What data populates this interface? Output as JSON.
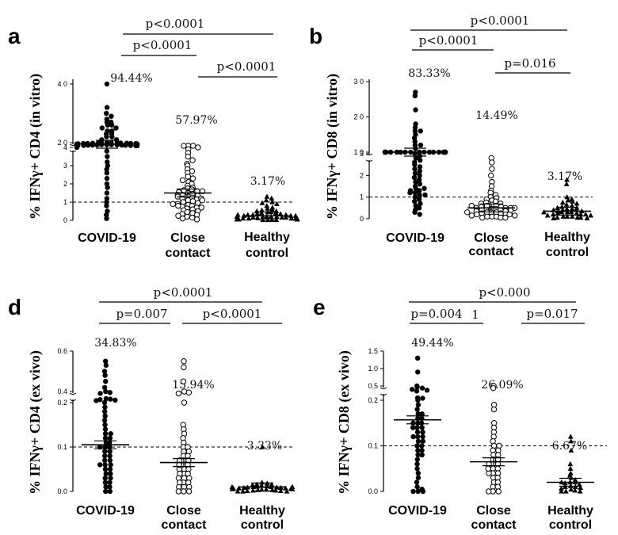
{
  "chart_data": [
    {
      "panel": "a",
      "type": "scatter",
      "ylabel": "% IFNγ+ CD4 (in vitro)",
      "categories": [
        "COVID-19",
        "Close contact",
        "Healthy control"
      ],
      "category_lines": [
        [
          "COVID-19"
        ],
        [
          "Close",
          "contact"
        ],
        [
          "Healthy",
          "control"
        ]
      ],
      "percentages": [
        "94.44%",
        "57.97%",
        "3.17%"
      ],
      "pvalues": [
        "p<0.0001",
        "p<0.0001",
        "p<0.0001"
      ],
      "yaxis": {
        "type": "broken",
        "lower_ticks": [
          0,
          1,
          2,
          3,
          4
        ],
        "upper_ticks": [
          20,
          40
        ],
        "ticks_text": [
          "0",
          "1",
          "2",
          "3",
          "4",
          "2 0",
          "4 0"
        ]
      },
      "threshold": 1,
      "series": [
        {
          "marker": "filled-circle",
          "mean": 12,
          "values": [
            40,
            32,
            30,
            29,
            28,
            27,
            27,
            26,
            26,
            25,
            25,
            24,
            24,
            23,
            23,
            22,
            22,
            21,
            21,
            20,
            20,
            19,
            19,
            18,
            18,
            17,
            17,
            16,
            16,
            15,
            15,
            14,
            14,
            13,
            13,
            12,
            12,
            12,
            11,
            11,
            10,
            10,
            10,
            9,
            9,
            8,
            8,
            7,
            7,
            6,
            6,
            5,
            5,
            4.8,
            4.5,
            4.2,
            4.0,
            3.8,
            3.5,
            3.2,
            3.0,
            2.8,
            2.6,
            2.3,
            2.0,
            1.8,
            1.5,
            1.2,
            1.0,
            0.8,
            0.5,
            0.3,
            0.1
          ]
        },
        {
          "marker": "open-circle",
          "mean": 1.5,
          "values": [
            4.6,
            4.4,
            4.2,
            4.0,
            3.9,
            3.7,
            3.5,
            3.3,
            3.1,
            3.0,
            2.8,
            2.7,
            2.6,
            2.4,
            2.3,
            2.2,
            2.1,
            2.0,
            1.9,
            1.8,
            1.75,
            1.7,
            1.65,
            1.6,
            1.55,
            1.5,
            1.45,
            1.4,
            1.35,
            1.3,
            1.25,
            1.2,
            1.15,
            1.1,
            1.05,
            1.0,
            0.95,
            0.9,
            0.85,
            0.8,
            0.75,
            0.7,
            0.65,
            0.6,
            0.55,
            0.5,
            0.45,
            0.4,
            0.35,
            0.3,
            0.25,
            0.2,
            0.15,
            0.1,
            0.05,
            1.6,
            1.4,
            1.3,
            1.2,
            1.1,
            0.9,
            0.8,
            0.7
          ]
        },
        {
          "marker": "filled-triangle",
          "mean": 0.25,
          "values": [
            1.3,
            1.2,
            1.1,
            1.0,
            0.95,
            0.9,
            0.8,
            0.7,
            0.65,
            0.6,
            0.55,
            0.5,
            0.5,
            0.45,
            0.45,
            0.4,
            0.4,
            0.35,
            0.35,
            0.3,
            0.3,
            0.3,
            0.25,
            0.25,
            0.25,
            0.2,
            0.2,
            0.2,
            0.2,
            0.15,
            0.15,
            0.15,
            0.15,
            0.1,
            0.1,
            0.1,
            0.1,
            0.05,
            0.05,
            0.05,
            0.05,
            0.02,
            0.02,
            0.02,
            0.02,
            0.3,
            0.2,
            0.1
          ]
        }
      ]
    },
    {
      "panel": "b",
      "type": "scatter",
      "ylabel": "% IFNγ+ CD8 (in vitro)",
      "categories": [
        "COVID-19",
        "Close contact",
        "Healthy control"
      ],
      "category_lines": [
        [
          "COVID-19"
        ],
        [
          "Close",
          "contact"
        ],
        [
          "Healthy",
          "control"
        ]
      ],
      "percentages": [
        "83.33%",
        "14.49%",
        "3.17%"
      ],
      "pvalues": [
        "p<0.0001",
        "p<0.0001",
        "p=0.016"
      ],
      "yaxis": {
        "type": "broken",
        "lower_ticks": [
          0,
          1,
          2,
          3
        ],
        "upper_ticks": [
          10,
          20,
          30
        ],
        "ticks_text": [
          "0",
          "1",
          "2",
          "3",
          "1 0",
          "2 0",
          "3 0"
        ]
      },
      "threshold": 1,
      "series": [
        {
          "marker": "filled-circle",
          "mean": 4,
          "values": [
            27,
            26,
            22,
            18,
            17,
            16,
            16,
            15,
            14,
            13,
            12,
            12,
            11,
            10,
            10,
            9,
            9,
            8,
            8,
            7,
            7,
            6,
            6,
            5,
            5,
            5,
            4.5,
            4.5,
            4.5,
            4,
            4,
            4,
            3.5,
            3.2,
            3.0,
            2.9,
            2.8,
            2.7,
            2.6,
            2.5,
            2.4,
            2.3,
            2.2,
            2.1,
            2.0,
            1.9,
            1.8,
            1.7,
            1.6,
            1.5,
            1.4,
            1.3,
            1.2,
            1.1,
            1.0,
            0.9,
            0.8,
            0.7,
            0.6,
            0.5,
            0.4,
            0.3,
            0.2,
            1.2,
            1.1,
            1.3,
            1.4
          ]
        },
        {
          "marker": "open-circle",
          "mean": 0.5,
          "values": [
            2.8,
            2.6,
            2.3,
            2.0,
            1.7,
            1.5,
            1.3,
            1.2,
            1.1,
            1.0,
            0.95,
            0.9,
            0.85,
            0.8,
            0.75,
            0.7,
            0.7,
            0.65,
            0.6,
            0.6,
            0.55,
            0.55,
            0.5,
            0.5,
            0.5,
            0.45,
            0.45,
            0.4,
            0.4,
            0.4,
            0.35,
            0.35,
            0.3,
            0.3,
            0.3,
            0.25,
            0.25,
            0.2,
            0.2,
            0.2,
            0.15,
            0.15,
            0.1,
            0.1,
            0.1,
            0.05,
            0.05,
            0.05,
            0.6,
            0.4,
            0.3,
            0.5
          ]
        },
        {
          "marker": "filled-triangle",
          "mean": 0.35,
          "values": [
            1.8,
            1.6,
            1.0,
            0.9,
            0.85,
            0.8,
            0.75,
            0.7,
            0.65,
            0.6,
            0.55,
            0.5,
            0.5,
            0.45,
            0.45,
            0.4,
            0.4,
            0.35,
            0.35,
            0.3,
            0.3,
            0.3,
            0.25,
            0.25,
            0.2,
            0.2,
            0.2,
            0.15,
            0.15,
            0.1,
            0.1,
            0.1,
            0.05,
            0.05,
            0.05,
            0.02,
            0.02,
            0.4,
            0.3
          ]
        }
      ]
    },
    {
      "panel": "d",
      "type": "scatter",
      "ylabel": "% IFNγ+ CD4 (ex vivo)",
      "categories": [
        "COVID-19",
        "Close contact",
        "Healthy control"
      ],
      "category_lines": [
        [
          "COVID-19"
        ],
        [
          "Close",
          "contact"
        ],
        [
          "Healthy",
          "control"
        ]
      ],
      "percentages": [
        "34.83%",
        "15.94%",
        "3.33%"
      ],
      "pvalues": [
        "p<0.0001",
        "p=0.007",
        "p<0.0001"
      ],
      "yaxis": {
        "type": "broken",
        "lower_ticks": [
          0.0,
          0.1,
          0.2
        ],
        "upper_ticks": [
          0.4,
          0.6
        ],
        "ticks_text": [
          "0.0",
          "0.1",
          "0.2",
          "0.4",
          "0.6"
        ]
      },
      "threshold": 0.1,
      "series": [
        {
          "marker": "filled-circle",
          "mean": 0.105,
          "values": [
            0.55,
            0.53,
            0.5,
            0.48,
            0.45,
            0.42,
            0.4,
            0.38,
            0.36,
            0.25,
            0.24,
            0.23,
            0.22,
            0.21,
            0.2,
            0.19,
            0.18,
            0.17,
            0.16,
            0.15,
            0.14,
            0.13,
            0.12,
            0.11,
            0.11,
            0.1,
            0.1,
            0.1,
            0.09,
            0.09,
            0.08,
            0.08,
            0.07,
            0.07,
            0.06,
            0.06,
            0.05,
            0.05,
            0.04,
            0.04,
            0.03,
            0.03,
            0.02,
            0.02,
            0.01,
            0.01,
            0.0,
            0.0,
            0.12,
            0.13,
            0.06
          ]
        },
        {
          "marker": "open-circle",
          "mean": 0.065,
          "values": [
            0.55,
            0.52,
            0.45,
            0.4,
            0.38,
            0.36,
            0.2,
            0.15,
            0.14,
            0.13,
            0.12,
            0.11,
            0.1,
            0.1,
            0.09,
            0.09,
            0.08,
            0.08,
            0.07,
            0.07,
            0.06,
            0.06,
            0.05,
            0.05,
            0.05,
            0.04,
            0.04,
            0.04,
            0.03,
            0.03,
            0.03,
            0.02,
            0.02,
            0.02,
            0.01,
            0.01,
            0.01,
            0.0,
            0.0,
            0.0,
            0.07,
            0.06
          ]
        },
        {
          "marker": "filled-triangle",
          "mean": 0.01,
          "values": [
            0.1,
            0.02,
            0.018,
            0.016,
            0.015,
            0.014,
            0.013,
            0.012,
            0.011,
            0.01,
            0.01,
            0.009,
            0.009,
            0.008,
            0.008,
            0.007,
            0.007,
            0.006,
            0.006,
            0.005,
            0.005,
            0.004,
            0.004,
            0.003,
            0.003,
            0.002,
            0.002,
            0.001,
            0.001,
            0.0,
            0.0,
            0.0,
            0.01,
            0.01
          ]
        }
      ]
    },
    {
      "panel": "e",
      "type": "scatter",
      "ylabel": "% IFNγ+ CD8 (ex vivo)",
      "categories": [
        "COVID-19",
        "Close contact",
        "Healthy control"
      ],
      "category_lines": [
        [
          "COVID-19"
        ],
        [
          "Close",
          "contact"
        ],
        [
          "Healthy",
          "control"
        ]
      ],
      "percentages": [
        "49.44%",
        "26.09%",
        "6.67%"
      ],
      "pvalues": [
        "p<0.000",
        "p=0.004",
        "p=0.017"
      ],
      "extra_label": "1",
      "yaxis": {
        "type": "broken",
        "lower_ticks": [
          0.0,
          0.1,
          0.2
        ],
        "upper_ticks": [
          0.5,
          1.0,
          1.5
        ],
        "ticks_text": [
          "0.0",
          "0.1",
          "0.2",
          "0.5",
          "1.0",
          "1.5"
        ]
      },
      "threshold": 0.1,
      "series": [
        {
          "marker": "filled-circle",
          "mean": 0.157,
          "values": [
            1.3,
            0.9,
            0.5,
            0.48,
            0.45,
            0.42,
            0.4,
            0.38,
            0.22,
            0.21,
            0.2,
            0.19,
            0.18,
            0.17,
            0.16,
            0.15,
            0.15,
            0.14,
            0.14,
            0.13,
            0.13,
            0.12,
            0.12,
            0.11,
            0.11,
            0.1,
            0.1,
            0.09,
            0.09,
            0.08,
            0.08,
            0.07,
            0.06,
            0.05,
            0.04,
            0.03,
            0.02,
            0.01,
            0.005,
            0.0,
            0.0,
            0.0,
            0.16,
            0.17,
            0.15,
            0.14,
            0.12
          ]
        },
        {
          "marker": "open-circle",
          "mean": 0.065,
          "values": [
            0.5,
            0.45,
            0.19,
            0.18,
            0.15,
            0.14,
            0.13,
            0.12,
            0.11,
            0.1,
            0.1,
            0.09,
            0.09,
            0.08,
            0.08,
            0.07,
            0.07,
            0.06,
            0.06,
            0.05,
            0.05,
            0.04,
            0.04,
            0.04,
            0.03,
            0.03,
            0.02,
            0.02,
            0.01,
            0.01,
            0.0,
            0.0,
            0.0,
            0.06,
            0.05
          ]
        },
        {
          "marker": "filled-triangle",
          "mean": 0.02,
          "values": [
            0.12,
            0.11,
            0.09,
            0.06,
            0.05,
            0.04,
            0.035,
            0.03,
            0.025,
            0.02,
            0.02,
            0.018,
            0.015,
            0.012,
            0.01,
            0.01,
            0.008,
            0.006,
            0.004,
            0.002,
            0.0,
            0.0,
            0.0,
            0.02
          ]
        }
      ]
    }
  ]
}
